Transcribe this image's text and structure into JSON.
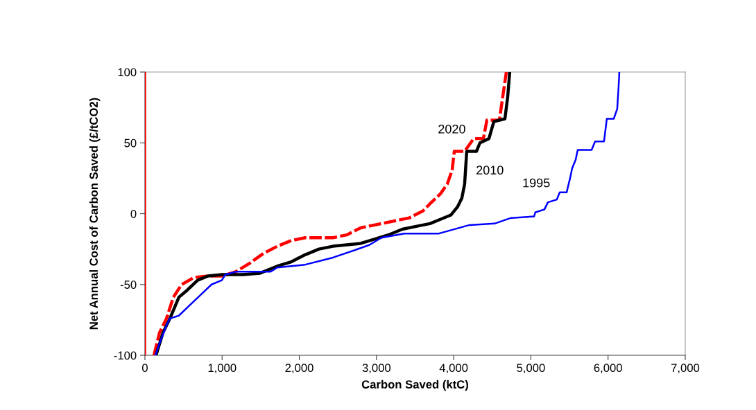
{
  "chart_data": {
    "type": "line",
    "xlabel": "Carbon Saved (ktC)",
    "ylabel": "Net Annual Cost of Carbon Saved (£/tCO2)",
    "xlim": [
      0,
      7000
    ],
    "ylim": [
      -100,
      100
    ],
    "xticks": [
      0,
      {
        "value": 1000,
        "label": "1,000"
      },
      {
        "value": 2000,
        "label": "2,000"
      },
      {
        "value": 3000,
        "label": "3,000"
      },
      {
        "value": 4000,
        "label": "4,000"
      },
      {
        "value": 5000,
        "label": "5,000"
      },
      {
        "value": 6000,
        "label": "6,000"
      },
      {
        "value": 7000,
        "label": "7,000"
      }
    ],
    "yticks": [
      -100,
      -50,
      0,
      50,
      100
    ],
    "grid": false,
    "marker": "none",
    "series": [
      {
        "name": "1995",
        "color": "#0000ff",
        "line_style": "solid",
        "x": [
          135,
          207,
          279,
          323,
          440,
          593,
          728,
          863,
          997,
          1042,
          1177,
          1626,
          1716,
          2076,
          2435,
          2705,
          2911,
          3064,
          3360,
          3810,
          4205,
          4529,
          4744,
          5041,
          5059,
          5176,
          5220,
          5337,
          5373,
          5463,
          5508,
          5535,
          5580,
          5607,
          5787,
          5832,
          5948,
          5984,
          6074,
          6119,
          6137,
          6146
        ],
        "values": [
          -100,
          -89,
          -79,
          -74,
          -72,
          -64,
          -57,
          -50,
          -47,
          -43,
          -41,
          -41,
          -38,
          -36,
          -31,
          -26,
          -22,
          -17,
          -14,
          -14,
          -8,
          -7,
          -3,
          -2,
          1,
          3,
          8,
          10,
          15,
          15,
          25,
          32,
          38,
          45,
          45,
          51,
          51,
          67,
          67,
          74,
          90,
          100
        ]
      },
      {
        "name": "2010",
        "color": "#000000",
        "line_style": "solid",
        "x": [
          144,
          234,
          324,
          440,
          548,
          683,
          818,
          997,
          1267,
          1492,
          1716,
          1896,
          2076,
          2255,
          2435,
          2795,
          2974,
          3154,
          3334,
          3513,
          3693,
          3783,
          3963,
          4052,
          4106,
          4142,
          4169,
          4295,
          4340,
          4457,
          4520,
          4664,
          4699,
          4726
        ],
        "values": [
          -100,
          -84,
          -74,
          -59,
          -54,
          -47,
          -44,
          -43,
          -43,
          -42,
          -37,
          -34,
          -29,
          -25,
          -23,
          -21,
          -18,
          -15,
          -11,
          -9,
          -7,
          -5,
          -1,
          5,
          11,
          21,
          44,
          44,
          50,
          53,
          65,
          67,
          82,
          100
        ]
      },
      {
        "name": "2020",
        "color": "#ff0000",
        "line_style": "dashed",
        "x": [
          117,
          189,
          279,
          368,
          476,
          638,
          818,
          997,
          1177,
          1357,
          1537,
          1716,
          1896,
          2076,
          2435,
          2615,
          2795,
          2974,
          3244,
          3424,
          3603,
          3693,
          3828,
          3918,
          3981,
          4008,
          4142,
          4259,
          4385,
          4430,
          4592,
          4637,
          4682
        ],
        "values": [
          -100,
          -84,
          -74,
          -59,
          -50,
          -45,
          -44,
          -44,
          -41,
          -35,
          -28,
          -23,
          -19,
          -17,
          -17,
          -15,
          -10,
          -8,
          -5,
          -3,
          2,
          7,
          14,
          21,
          31,
          44,
          44,
          53,
          53,
          66,
          66,
          83,
          100
        ]
      }
    ],
    "ref_lines": [
      {
        "axis": "x",
        "value": 0,
        "color": "#ff0000",
        "line_style": "solid"
      }
    ]
  }
}
